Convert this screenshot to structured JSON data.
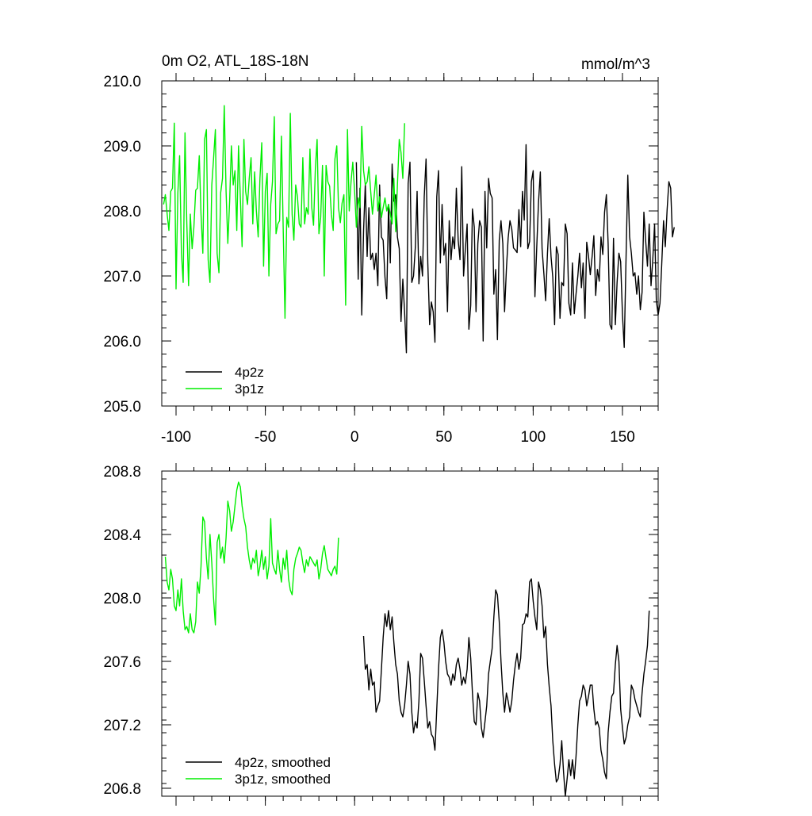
{
  "colors": {
    "black_series": "#000000",
    "green_series": "#00ee00",
    "axis": "#000000",
    "background": "#ffffff"
  },
  "chart_data": [
    {
      "type": "line",
      "title": "0m O2, ATL_18S-18N",
      "units": "mmol/m^3",
      "xlim": [
        -108,
        170
      ],
      "ylim": [
        205.0,
        210.0
      ],
      "xticks": [
        -100,
        -50,
        0,
        50,
        100,
        150
      ],
      "xtick_labels": [
        "-100",
        "-50",
        "0",
        "50",
        "100",
        "150"
      ],
      "yticks": [
        205.0,
        206.0,
        207.0,
        208.0,
        209.0,
        210.0
      ],
      "ytick_labels": [
        "205.0",
        "206.0",
        "207.0",
        "208.0",
        "209.0",
        "210.0"
      ],
      "legend_position": "bottom-left",
      "series": [
        {
          "name": "4p2z",
          "color": "#000000",
          "x_start": 1,
          "x_step": 1,
          "values": [
            208.75,
            206.95,
            208.35,
            206.4,
            207.7,
            208.42,
            207.3,
            208.05,
            207.25,
            207.35,
            207.1,
            207.35,
            206.85,
            208.4,
            207.6,
            207.55,
            206.98,
            206.65,
            208.1,
            207.2,
            208.72,
            208.15,
            208.25,
            207.6,
            207.42,
            206.3,
            206.95,
            206.45,
            205.82,
            208.42,
            208.75,
            206.9,
            207.0,
            207.45,
            208.3,
            206.88,
            207.3,
            207.0,
            208.22,
            208.8,
            207.2,
            206.25,
            206.6,
            206.45,
            205.98,
            208.22,
            208.62,
            207.2,
            208.1,
            207.32,
            207.5,
            206.45,
            207.85,
            207.25,
            207.6,
            207.42,
            208.35,
            207.55,
            207.25,
            208.68,
            207.0,
            207.4,
            207.8,
            206.18,
            206.55,
            208.03,
            207.75,
            206.45,
            207.5,
            207.85,
            207.75,
            206.0,
            208.3,
            207.43,
            208.5,
            208.27,
            208.2,
            206.72,
            207.1,
            206.02,
            207.55,
            207.85,
            207.5,
            206.45,
            207.1,
            207.58,
            207.85,
            207.72,
            207.43,
            207.4,
            207.36,
            208.02,
            207.45,
            208.3,
            207.86,
            209.02,
            207.42,
            207.53,
            208.45,
            208.62,
            206.68,
            207.45,
            208.13,
            208.6,
            207.42,
            207.03,
            206.62,
            207.35,
            207.88,
            207.3,
            206.98,
            206.25,
            207.45,
            207.33,
            206.35,
            206.9,
            206.85,
            207.8,
            207.65,
            206.58,
            206.4,
            207.2,
            206.42,
            206.72,
            207.0,
            207.35,
            206.82,
            207.2,
            206.35,
            207.52,
            207.3,
            207.02,
            207.3,
            207.62,
            206.7,
            207.1,
            206.92,
            207.6,
            207.33,
            207.98,
            208.25,
            207.5,
            206.25,
            206.18,
            207.58,
            206.25,
            206.9,
            207.35,
            207.22,
            206.4,
            205.9,
            207.28,
            208.55,
            207.6,
            207.35,
            207.0,
            207.05,
            206.72,
            207.0,
            206.48,
            206.75,
            207.98,
            207.55,
            207.15,
            207.8,
            206.85,
            207.25,
            207.8,
            206.62,
            206.4,
            206.58,
            207.18,
            207.85,
            207.45,
            208.02,
            208.45,
            208.35,
            207.6,
            207.75
          ]
        },
        {
          "name": "3p1z",
          "color": "#00ee00",
          "x_start": -107,
          "x_step": 1,
          "values": [
            208.1,
            208.25,
            207.95,
            207.7,
            208.3,
            208.35,
            209.35,
            206.8,
            208.28,
            208.85,
            207.35,
            206.9,
            209.2,
            207.85,
            206.85,
            207.95,
            207.42,
            207.75,
            208.32,
            208.35,
            208.85,
            207.95,
            207.35,
            209.1,
            209.25,
            207.25,
            206.9,
            208.4,
            208.8,
            209.25,
            207.35,
            207.05,
            208.28,
            208.5,
            209.62,
            208.3,
            207.5,
            208.15,
            209.0,
            208.4,
            208.62,
            207.7,
            209.0,
            208.2,
            207.45,
            209.1,
            208.3,
            208.1,
            208.5,
            208.82,
            207.8,
            208.6,
            208.0,
            207.6,
            208.5,
            209.05,
            207.15,
            208.3,
            208.58,
            207.0,
            208.1,
            208.45,
            209.45,
            207.65,
            207.8,
            207.85,
            209.15,
            207.75,
            206.35,
            207.9,
            207.75,
            209.5,
            207.95,
            207.55,
            208.4,
            208.22,
            207.8,
            207.75,
            208.82,
            207.8,
            208.05,
            207.95,
            208.95,
            208.05,
            207.78,
            208.65,
            209.1,
            207.65,
            207.9,
            208.7,
            207.0,
            208.7,
            208.45,
            208.38,
            207.95,
            207.7,
            208.8,
            209.0,
            208.05,
            207.82,
            208.12,
            208.25,
            206.55,
            209.25,
            208.0,
            208.45,
            208.75,
            208.3,
            207.75,
            208.2,
            208.05,
            209.3,
            208.62,
            208.4,
            208.45,
            208.68,
            208.3,
            207.95,
            208.25,
            208.55,
            208.0,
            208.22,
            207.9,
            208.05,
            208.2,
            208.0,
            208.1,
            207.95,
            207.8,
            208.5,
            207.68,
            208.4,
            209.1,
            208.9,
            208.5,
            209.35
          ]
        }
      ]
    },
    {
      "type": "line",
      "xlim": [
        -108,
        170
      ],
      "ylim": [
        206.75,
        208.8
      ],
      "yticks": [
        206.8,
        207.2,
        207.6,
        208.0,
        208.4,
        208.8
      ],
      "ytick_labels": [
        "206.8",
        "207.2",
        "207.6",
        "208.0",
        "208.4",
        "208.8"
      ],
      "xticks": [
        -100,
        -50,
        0,
        50,
        100,
        150
      ],
      "legend_position": "bottom-left",
      "series": [
        {
          "name": "4p2z, smoothed",
          "color": "#000000",
          "x_start": 5,
          "x_step": 1,
          "values": [
            207.76,
            207.55,
            207.58,
            207.42,
            207.55,
            207.45,
            207.47,
            207.28,
            207.32,
            207.35,
            207.55,
            207.75,
            207.9,
            207.82,
            207.92,
            207.8,
            207.88,
            207.72,
            207.58,
            207.52,
            207.35,
            207.28,
            207.25,
            207.32,
            207.45,
            207.6,
            207.52,
            207.28,
            207.15,
            207.22,
            207.18,
            207.35,
            207.65,
            207.62,
            207.48,
            207.32,
            207.18,
            207.22,
            207.14,
            207.12,
            207.04,
            207.3,
            207.55,
            207.75,
            207.8,
            207.72,
            207.6,
            207.52,
            207.5,
            207.45,
            207.52,
            207.48,
            207.58,
            207.62,
            207.55,
            207.45,
            207.5,
            207.46,
            207.55,
            207.75,
            207.62,
            207.4,
            207.22,
            207.2,
            207.4,
            207.35,
            207.18,
            207.12,
            207.22,
            207.32,
            207.52,
            207.6,
            207.68,
            207.88,
            208.05,
            208.02,
            207.85,
            207.6,
            207.4,
            207.28,
            207.4,
            207.35,
            207.28,
            207.35,
            207.48,
            207.58,
            207.65,
            207.55,
            207.62,
            207.83,
            207.84,
            207.9,
            207.88,
            208.1,
            208.12,
            207.98,
            207.88,
            207.8,
            208.1,
            208.05,
            207.95,
            207.75,
            207.82,
            207.58,
            207.44,
            207.32,
            207.1,
            206.95,
            206.84,
            206.86,
            206.95,
            207.1,
            206.9,
            206.75,
            206.86,
            206.98,
            206.88,
            206.98,
            206.86,
            207.0,
            207.2,
            207.35,
            207.38,
            207.45,
            207.42,
            207.32,
            207.38,
            207.45,
            207.45,
            207.3,
            207.2,
            207.22,
            207.18,
            207.04,
            206.98,
            206.9,
            206.86,
            207.15,
            207.28,
            207.38,
            207.4,
            207.58,
            207.7,
            207.6,
            207.3,
            207.18,
            207.08,
            207.12,
            207.2,
            207.25,
            207.45,
            207.42,
            207.36,
            207.32,
            207.28,
            207.25,
            207.4,
            207.52,
            207.6,
            207.7,
            207.92
          ]
        },
        {
          "name": "3p1z, smoothed",
          "color": "#00ee00",
          "x_start": -106,
          "x_step": 1,
          "values": [
            208.26,
            208.1,
            208.05,
            208.18,
            208.12,
            207.95,
            207.92,
            208.05,
            207.95,
            208.12,
            207.92,
            207.8,
            207.82,
            207.78,
            207.9,
            207.8,
            207.78,
            207.85,
            208.1,
            208.03,
            208.2,
            208.51,
            208.48,
            208.25,
            208.12,
            208.4,
            208.22,
            208.0,
            207.83,
            208.35,
            208.4,
            208.25,
            208.32,
            208.22,
            208.38,
            208.61,
            208.55,
            208.42,
            208.48,
            208.58,
            208.68,
            208.73,
            208.7,
            208.58,
            208.5,
            208.45,
            208.32,
            208.24,
            208.18,
            208.25,
            208.22,
            208.3,
            208.14,
            208.2,
            208.3,
            208.18,
            208.26,
            208.12,
            208.2,
            208.5,
            208.22,
            208.18,
            208.15,
            208.3,
            208.18,
            208.1,
            208.25,
            208.18,
            208.3,
            208.12,
            208.05,
            208.02,
            208.18,
            208.25,
            208.28,
            208.32,
            208.3,
            208.22,
            208.16,
            208.24,
            208.2,
            208.26,
            208.24,
            208.22,
            208.2,
            208.24,
            208.12,
            208.18,
            208.28,
            208.33,
            208.25,
            208.18,
            208.16,
            208.14,
            208.18,
            208.2,
            208.15,
            208.38
          ]
        }
      ]
    }
  ]
}
